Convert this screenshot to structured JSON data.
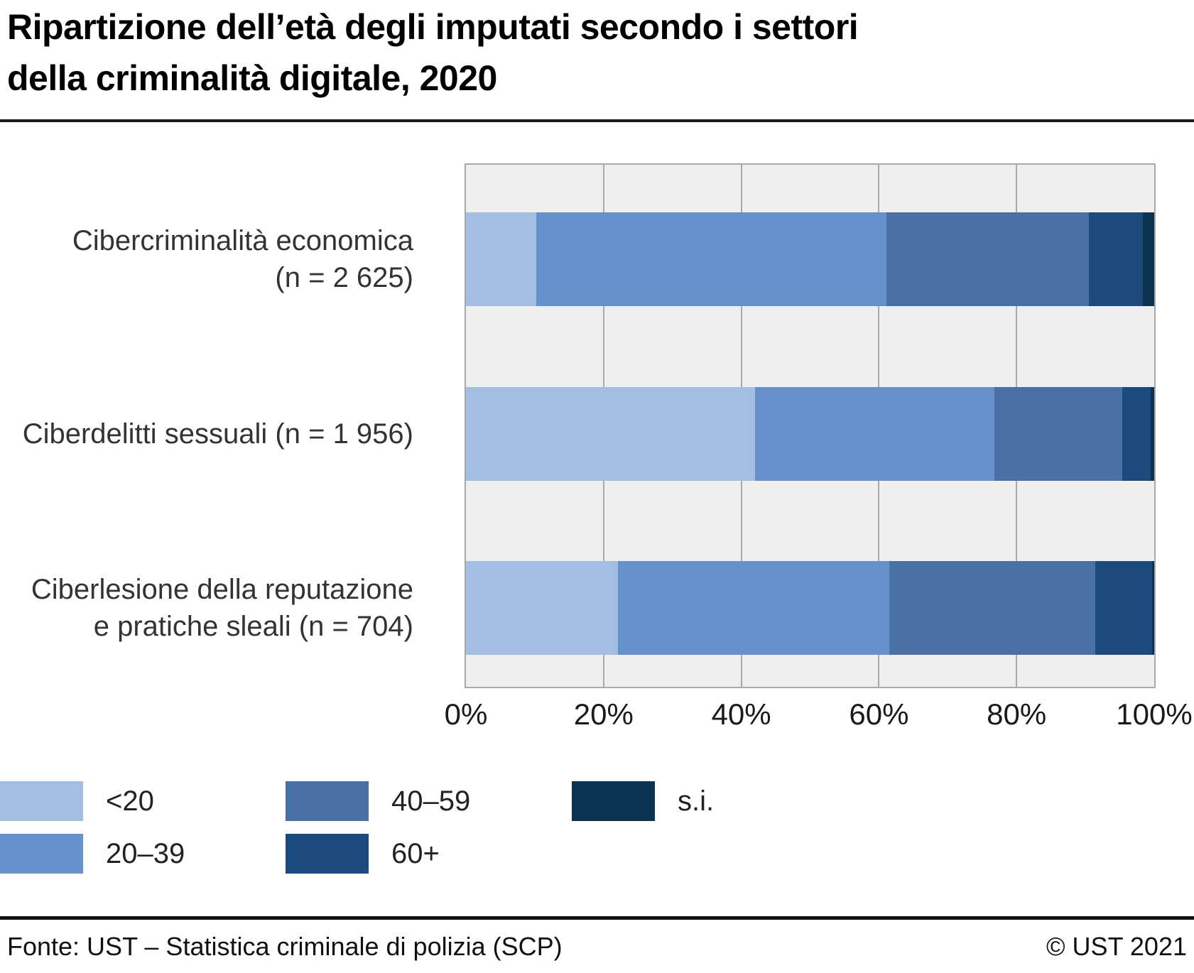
{
  "title": {
    "line1": "Ripartizione dell’età degli imputati secondo i settori",
    "line2": "della criminalità digitale, 2020"
  },
  "chart_data": {
    "type": "bar",
    "stacked": true,
    "orientation": "horizontal",
    "unit": "%",
    "title": "Ripartizione dell’età degli imputati secondo i settori della criminalità digitale, 2020",
    "categories": [
      "Cibercriminalità economica (n = 2 625)",
      "Ciberdelitti sessuali (n = 1 956)",
      "Ciberlesione della reputazione e pratiche sleali (n = 704)"
    ],
    "category_label_lines": [
      [
        "Cibercriminalità economica",
        "(n = 2 625)"
      ],
      [
        "Ciberdelitti sessuali (n = 1 956)"
      ],
      [
        "Ciberlesione della reputazione",
        "e pratiche sleali (n = 704)"
      ]
    ],
    "n_values": [
      2625,
      1956,
      704
    ],
    "series": [
      {
        "name": "<20",
        "color": "#a4bee2",
        "values": [
          10.2,
          42.0,
          22.1
        ]
      },
      {
        "name": "20–39",
        "color": "#6791cb",
        "values": [
          50.9,
          34.8,
          39.4
        ]
      },
      {
        "name": "40–59",
        "color": "#4a70a6",
        "values": [
          29.4,
          18.6,
          29.9
        ]
      },
      {
        "name": "60+",
        "color": "#1d4a7e",
        "values": [
          7.8,
          4.1,
          8.3
        ]
      },
      {
        "name": "s.i.",
        "color": "#0b3251",
        "values": [
          1.7,
          0.5,
          0.3
        ]
      }
    ],
    "x_axis": {
      "ticks": [
        "0%",
        "20%",
        "40%",
        "60%",
        "80%",
        "100%"
      ],
      "min": 0,
      "max": 100,
      "grid": true
    },
    "legend_position": "bottom-left",
    "plot_background": "#efefef",
    "grid_color": "#a9a9a9"
  },
  "footer": {
    "source": "Fonte: UST – Statistica criminale di polizia (SCP)",
    "copyright": "© UST 2021"
  }
}
